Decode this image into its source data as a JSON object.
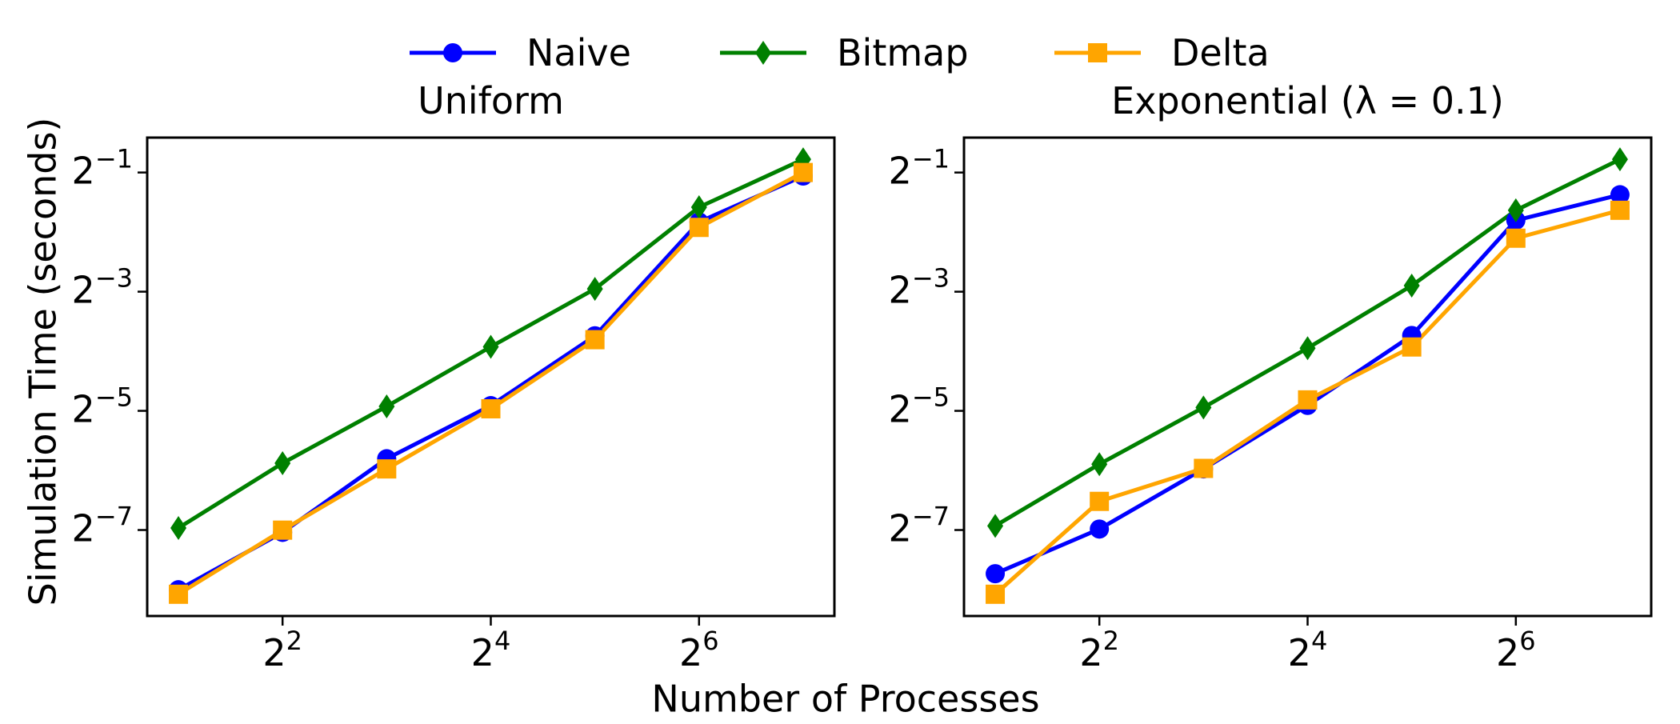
{
  "legend": {
    "items": [
      {
        "label": "Naive",
        "color": "#0000ff",
        "marker": "circle"
      },
      {
        "label": "Bitmap",
        "color": "#008000",
        "marker": "diamond"
      },
      {
        "label": "Delta",
        "color": "#ffa500",
        "marker": "square"
      }
    ],
    "placement": "top-center"
  },
  "shared": {
    "xlabel": "Number of Processes",
    "ylabel": "Simulation Time (seconds)"
  },
  "chart_data": [
    {
      "type": "line",
      "title": "Uniform",
      "x_scale": "log2",
      "y_scale": "log2",
      "x": [
        2,
        4,
        8,
        16,
        32,
        64,
        128
      ],
      "xticks": [
        4,
        16,
        64
      ],
      "yticks": [
        0.5,
        0.125,
        0.03125,
        0.0078125
      ],
      "series": [
        {
          "name": "Naive",
          "color": "#0000ff",
          "marker": "circle",
          "values": [
            0.0039,
            0.0076,
            0.0179,
            0.0332,
            0.0748,
            0.2811,
            0.4799
          ]
        },
        {
          "name": "Bitmap",
          "color": "#008000",
          "marker": "diamond",
          "values": [
            0.008,
            0.017,
            0.0329,
            0.0658,
            0.1291,
            0.3338,
            0.5827
          ]
        },
        {
          "name": "Delta",
          "color": "#ffa500",
          "marker": "square",
          "values": [
            0.0037,
            0.0078,
            0.0159,
            0.032,
            0.0715,
            0.264,
            0.5
          ]
        }
      ]
    },
    {
      "type": "line",
      "title": "Exponential (λ = 0.1)",
      "x_scale": "log2",
      "y_scale": "log2",
      "x": [
        2,
        4,
        8,
        16,
        32,
        64,
        128
      ],
      "xticks": [
        4,
        16,
        64
      ],
      "yticks": [
        0.5,
        0.125,
        0.03125,
        0.0078125
      ],
      "series": [
        {
          "name": "Naive",
          "color": "#0000ff",
          "marker": "circle",
          "values": [
            0.0047,
            0.0079,
            0.0159,
            0.0333,
            0.0751,
            0.2867,
            0.3862
          ]
        },
        {
          "name": "Bitmap",
          "color": "#008000",
          "marker": "diamond",
          "values": [
            0.0082,
            0.0168,
            0.0325,
            0.0648,
            0.1342,
            0.3222,
            0.5829
          ]
        },
        {
          "name": "Delta",
          "color": "#ffa500",
          "marker": "square",
          "values": [
            0.0037,
            0.0109,
            0.016,
            0.0355,
            0.0657,
            0.2329,
            0.3223
          ]
        }
      ]
    }
  ]
}
